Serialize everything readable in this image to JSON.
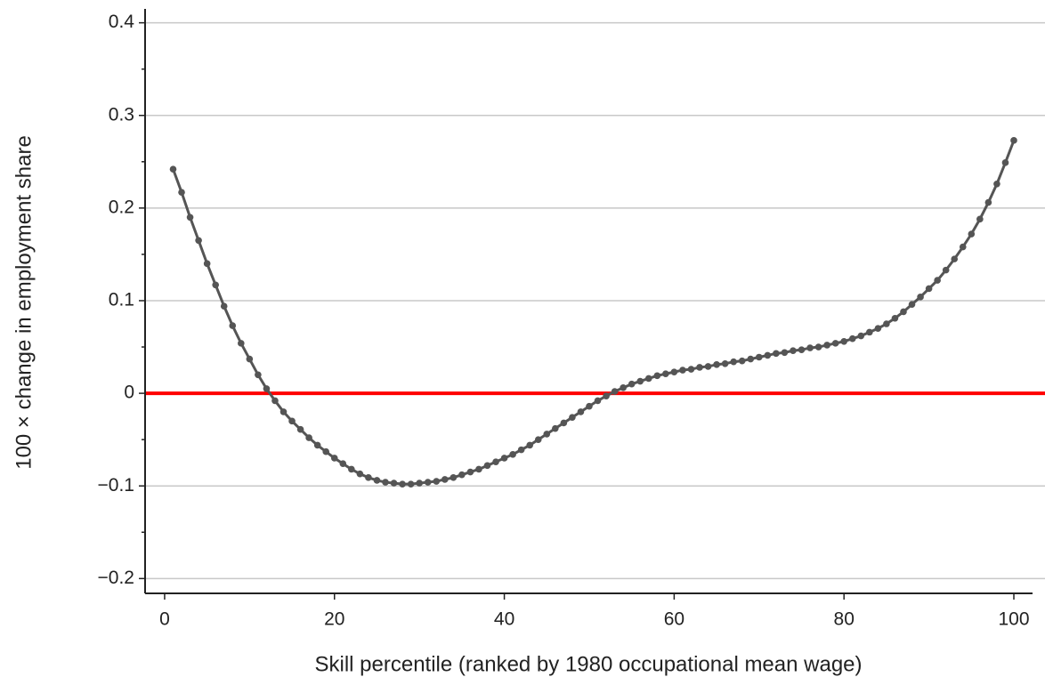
{
  "chart_data": {
    "type": "line",
    "xlabel": "Skill percentile (ranked by 1980 occupational mean wage)",
    "ylabel": "100 × change in employment share",
    "x": [
      1,
      2,
      3,
      4,
      5,
      6,
      7,
      8,
      9,
      10,
      11,
      12,
      13,
      14,
      15,
      16,
      17,
      18,
      19,
      20,
      21,
      22,
      23,
      24,
      25,
      26,
      27,
      28,
      29,
      30,
      31,
      32,
      33,
      34,
      35,
      36,
      37,
      38,
      39,
      40,
      41,
      42,
      43,
      44,
      45,
      46,
      47,
      48,
      49,
      50,
      51,
      52,
      53,
      54,
      55,
      56,
      57,
      58,
      59,
      60,
      61,
      62,
      63,
      64,
      65,
      66,
      67,
      68,
      69,
      70,
      71,
      72,
      73,
      74,
      75,
      76,
      77,
      78,
      79,
      80,
      81,
      82,
      83,
      84,
      85,
      86,
      87,
      88,
      89,
      90,
      91,
      92,
      93,
      94,
      95,
      96,
      97,
      98,
      99,
      100
    ],
    "series": [
      {
        "color": "#555555",
        "values": [
          0.242,
          0.217,
          0.19,
          0.165,
          0.14,
          0.117,
          0.094,
          0.073,
          0.054,
          0.037,
          0.02,
          0.005,
          -0.008,
          -0.02,
          -0.03,
          -0.039,
          -0.048,
          -0.056,
          -0.063,
          -0.07,
          -0.076,
          -0.082,
          -0.087,
          -0.091,
          -0.094,
          -0.096,
          -0.097,
          -0.098,
          -0.098,
          -0.097,
          -0.096,
          -0.095,
          -0.093,
          -0.091,
          -0.088,
          -0.085,
          -0.082,
          -0.078,
          -0.074,
          -0.07,
          -0.066,
          -0.061,
          -0.056,
          -0.05,
          -0.044,
          -0.038,
          -0.032,
          -0.026,
          -0.02,
          -0.014,
          -0.008,
          -0.003,
          0.002,
          0.006,
          0.01,
          0.013,
          0.016,
          0.019,
          0.021,
          0.023,
          0.025,
          0.026,
          0.028,
          0.029,
          0.031,
          0.032,
          0.034,
          0.035,
          0.037,
          0.039,
          0.041,
          0.043,
          0.044,
          0.046,
          0.047,
          0.049,
          0.05,
          0.052,
          0.054,
          0.056,
          0.059,
          0.062,
          0.066,
          0.07,
          0.075,
          0.081,
          0.088,
          0.096,
          0.104,
          0.113,
          0.122,
          0.133,
          0.145,
          0.158,
          0.172,
          0.188,
          0.206,
          0.226,
          0.249,
          0.273
        ]
      }
    ],
    "xlim": [
      -2.3,
      102.2
    ],
    "xticks": [
      0,
      20,
      40,
      60,
      80,
      100
    ],
    "ylim": [
      -0.216,
      0.415
    ],
    "yticks": [
      {
        "value": -0.2,
        "label": "−0.2"
      },
      {
        "value": -0.1,
        "label": "−0.1"
      },
      0,
      0.1,
      0.2,
      0.3,
      0.4
    ],
    "yminorticks": [
      -0.15,
      -0.05,
      0.05,
      0.15,
      0.25,
      0.35
    ],
    "grid": true,
    "hline": {
      "value": 0,
      "color": "#ff0000"
    }
  }
}
